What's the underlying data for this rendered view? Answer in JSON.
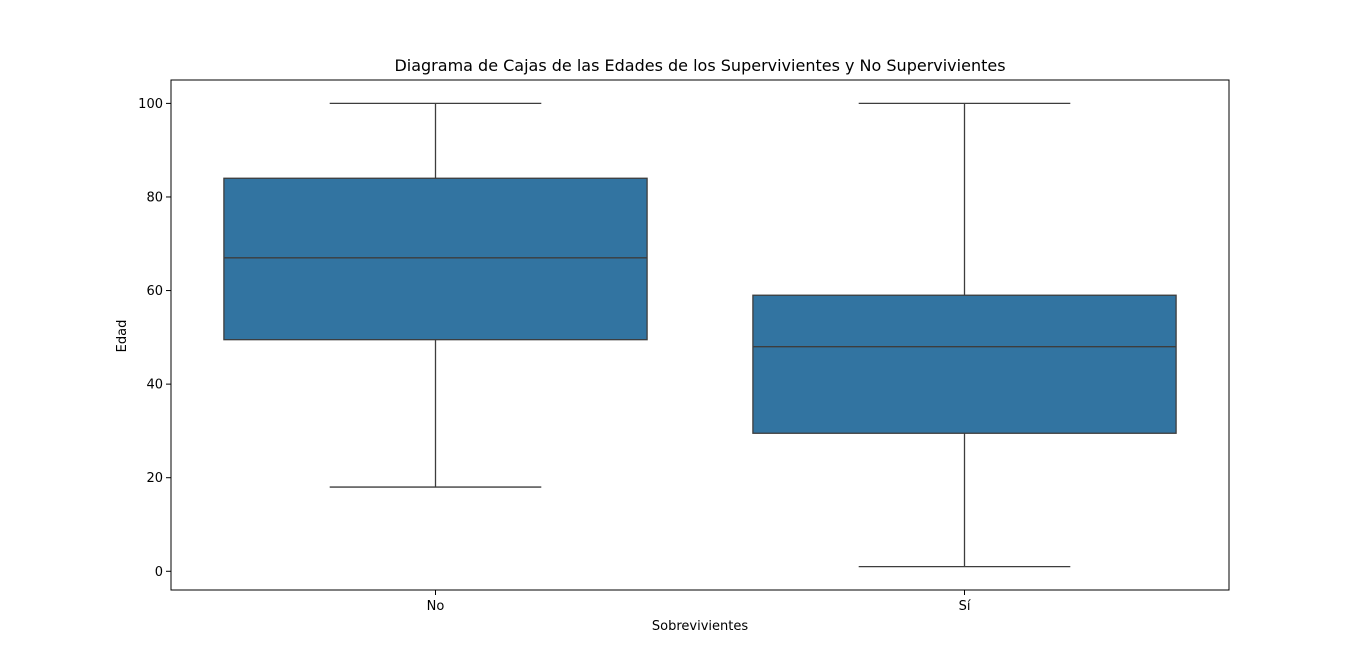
{
  "chart_data": {
    "type": "box",
    "title": "Diagrama de Cajas de las Edades de los Supervivientes y No Supervivientes",
    "xlabel": "Sobrevivientes",
    "ylabel": "Edad",
    "ylim": [
      -4,
      105
    ],
    "yticks": [
      0,
      20,
      40,
      60,
      80,
      100
    ],
    "categories": [
      "No",
      "Sí"
    ],
    "boxes": [
      {
        "category": "No",
        "min": 18,
        "q1": 49.5,
        "median": 67,
        "q3": 84,
        "max": 100
      },
      {
        "category": "Sí",
        "min": 1,
        "q1": 29.5,
        "median": 48,
        "q3": 59,
        "max": 100
      }
    ],
    "grid": false,
    "legend": "none",
    "colors": {
      "box_fill": "#3274a1",
      "line": "#3d3d3d",
      "axis": "#000000"
    }
  }
}
